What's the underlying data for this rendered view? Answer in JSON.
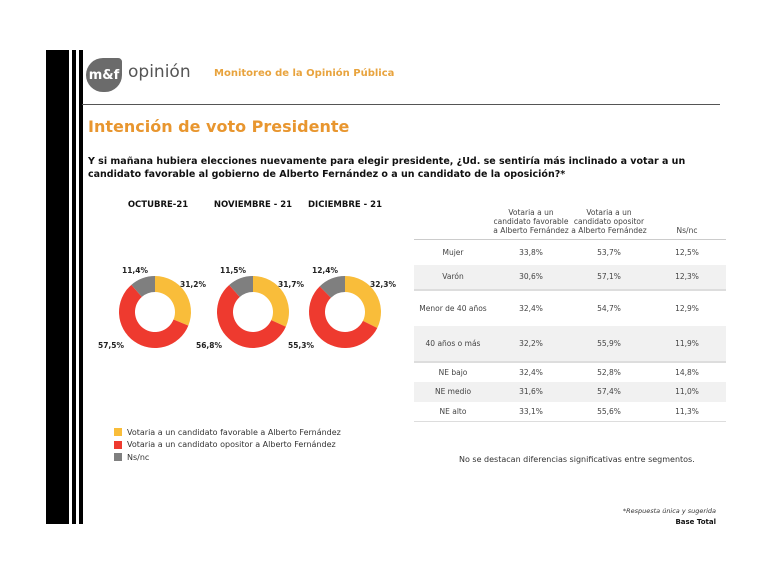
{
  "header": {
    "logo_mark": "m&f",
    "logo_text": "opinión",
    "subtitle": "Monitoreo de la Opinión Pública"
  },
  "title": "Intención de voto Presidente",
  "question": "Y si mañana hubiera elecciones nuevamente para elegir presidente, ¿Ud. se sentiría más inclinado a votar a un candidato favorable al gobierno de Alberto Fernández o a un candidato de la oposición?*",
  "colors": {
    "favorable": "#f9bd3a",
    "opositor": "#ee3a2f",
    "nsnc": "#7f7f7f",
    "accent": "#e8962f"
  },
  "chart_data": {
    "type": "pie",
    "variant": "donut",
    "categories": [
      "Votaría a un candidato favorable a Alberto Fernández",
      "Votaría a un candidato opositor a Alberto Fernández",
      "Ns/nc"
    ],
    "charts": [
      {
        "title": "OCTUBRE-21",
        "values": [
          31.2,
          57.5,
          11.4
        ],
        "labels": [
          "31,2%",
          "57,5%",
          "11,4%"
        ]
      },
      {
        "title": "NOVIEMBRE - 21",
        "values": [
          31.7,
          56.8,
          11.5
        ],
        "labels": [
          "31,7%",
          "56,8%",
          "11,5%"
        ]
      },
      {
        "title": "DICIEMBRE - 21",
        "values": [
          32.3,
          55.3,
          12.4
        ],
        "labels": [
          "32,3%",
          "55,3%",
          "12,4%"
        ]
      }
    ],
    "legend": [
      "Votaria a un candidato favorable a Alberto Fernández",
      "Votaria a un candidato opositor a Alberto Fernández",
      "Ns/nc"
    ],
    "legend_placement": "bottom-left"
  },
  "table": {
    "headers": [
      "",
      "Votaria a un candidato favorable a Alberto Fernández",
      "Votaria a un candidato opositor a Alberto Fernández",
      "Ns/nc"
    ],
    "rows": [
      [
        "Mujer",
        "33,8%",
        "53,7%",
        "12,5%"
      ],
      [
        "Varón",
        "30,6%",
        "57,1%",
        "12,3%"
      ],
      [
        "Menor de 40 años",
        "32,4%",
        "54,7%",
        "12,9%"
      ],
      [
        "40 años o más",
        "32,2%",
        "55,9%",
        "11,9%"
      ],
      [
        "NE bajo",
        "32,4%",
        "52,8%",
        "14,8%"
      ],
      [
        "NE medio",
        "31,6%",
        "57,4%",
        "11,0%"
      ],
      [
        "NE alto",
        "33,1%",
        "55,6%",
        "11,3%"
      ]
    ]
  },
  "note": "No se destacan diferencias significativas entre segmentos.",
  "footer": {
    "footnote": "*Respuesta única y sugerida",
    "base": "Base Total"
  }
}
